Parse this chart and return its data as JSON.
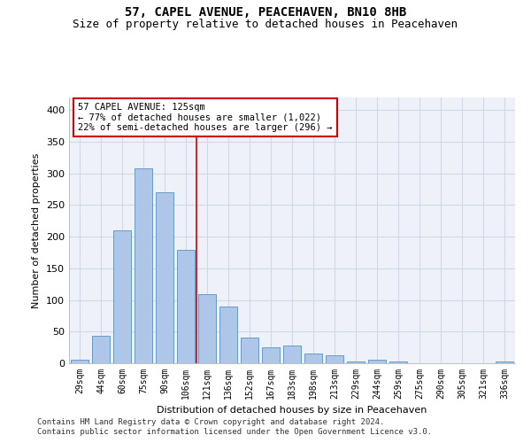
{
  "title": "57, CAPEL AVENUE, PEACEHAVEN, BN10 8HB",
  "subtitle": "Size of property relative to detached houses in Peacehaven",
  "xlabel": "Distribution of detached houses by size in Peacehaven",
  "ylabel": "Number of detached properties",
  "categories": [
    "29sqm",
    "44sqm",
    "60sqm",
    "75sqm",
    "90sqm",
    "106sqm",
    "121sqm",
    "136sqm",
    "152sqm",
    "167sqm",
    "183sqm",
    "198sqm",
    "213sqm",
    "229sqm",
    "244sqm",
    "259sqm",
    "275sqm",
    "290sqm",
    "305sqm",
    "321sqm",
    "336sqm"
  ],
  "values": [
    5,
    43,
    210,
    308,
    270,
    179,
    109,
    90,
    40,
    25,
    28,
    16,
    13,
    3,
    5,
    3,
    0,
    0,
    0,
    0,
    3
  ],
  "bar_color": "#aec6e8",
  "bar_edge_color": "#5a8fc2",
  "vline_color": "#cc0000",
  "annotation_text": "57 CAPEL AVENUE: 125sqm\n← 77% of detached houses are smaller (1,022)\n22% of semi-detached houses are larger (296) →",
  "annotation_box_color": "#ffffff",
  "annotation_box_edge": "#cc0000",
  "ylim": [
    0,
    420
  ],
  "yticks": [
    0,
    50,
    100,
    150,
    200,
    250,
    300,
    350,
    400
  ],
  "grid_color": "#d0d8e8",
  "background_color": "#eef2f8",
  "footer_line1": "Contains HM Land Registry data © Crown copyright and database right 2024.",
  "footer_line2": "Contains public sector information licensed under the Open Government Licence v3.0.",
  "title_fontsize": 10,
  "subtitle_fontsize": 9,
  "axis_fontsize": 7,
  "ylabel_fontsize": 8,
  "xlabel_fontsize": 8,
  "footer_fontsize": 6.5,
  "annotation_fontsize": 7.5
}
